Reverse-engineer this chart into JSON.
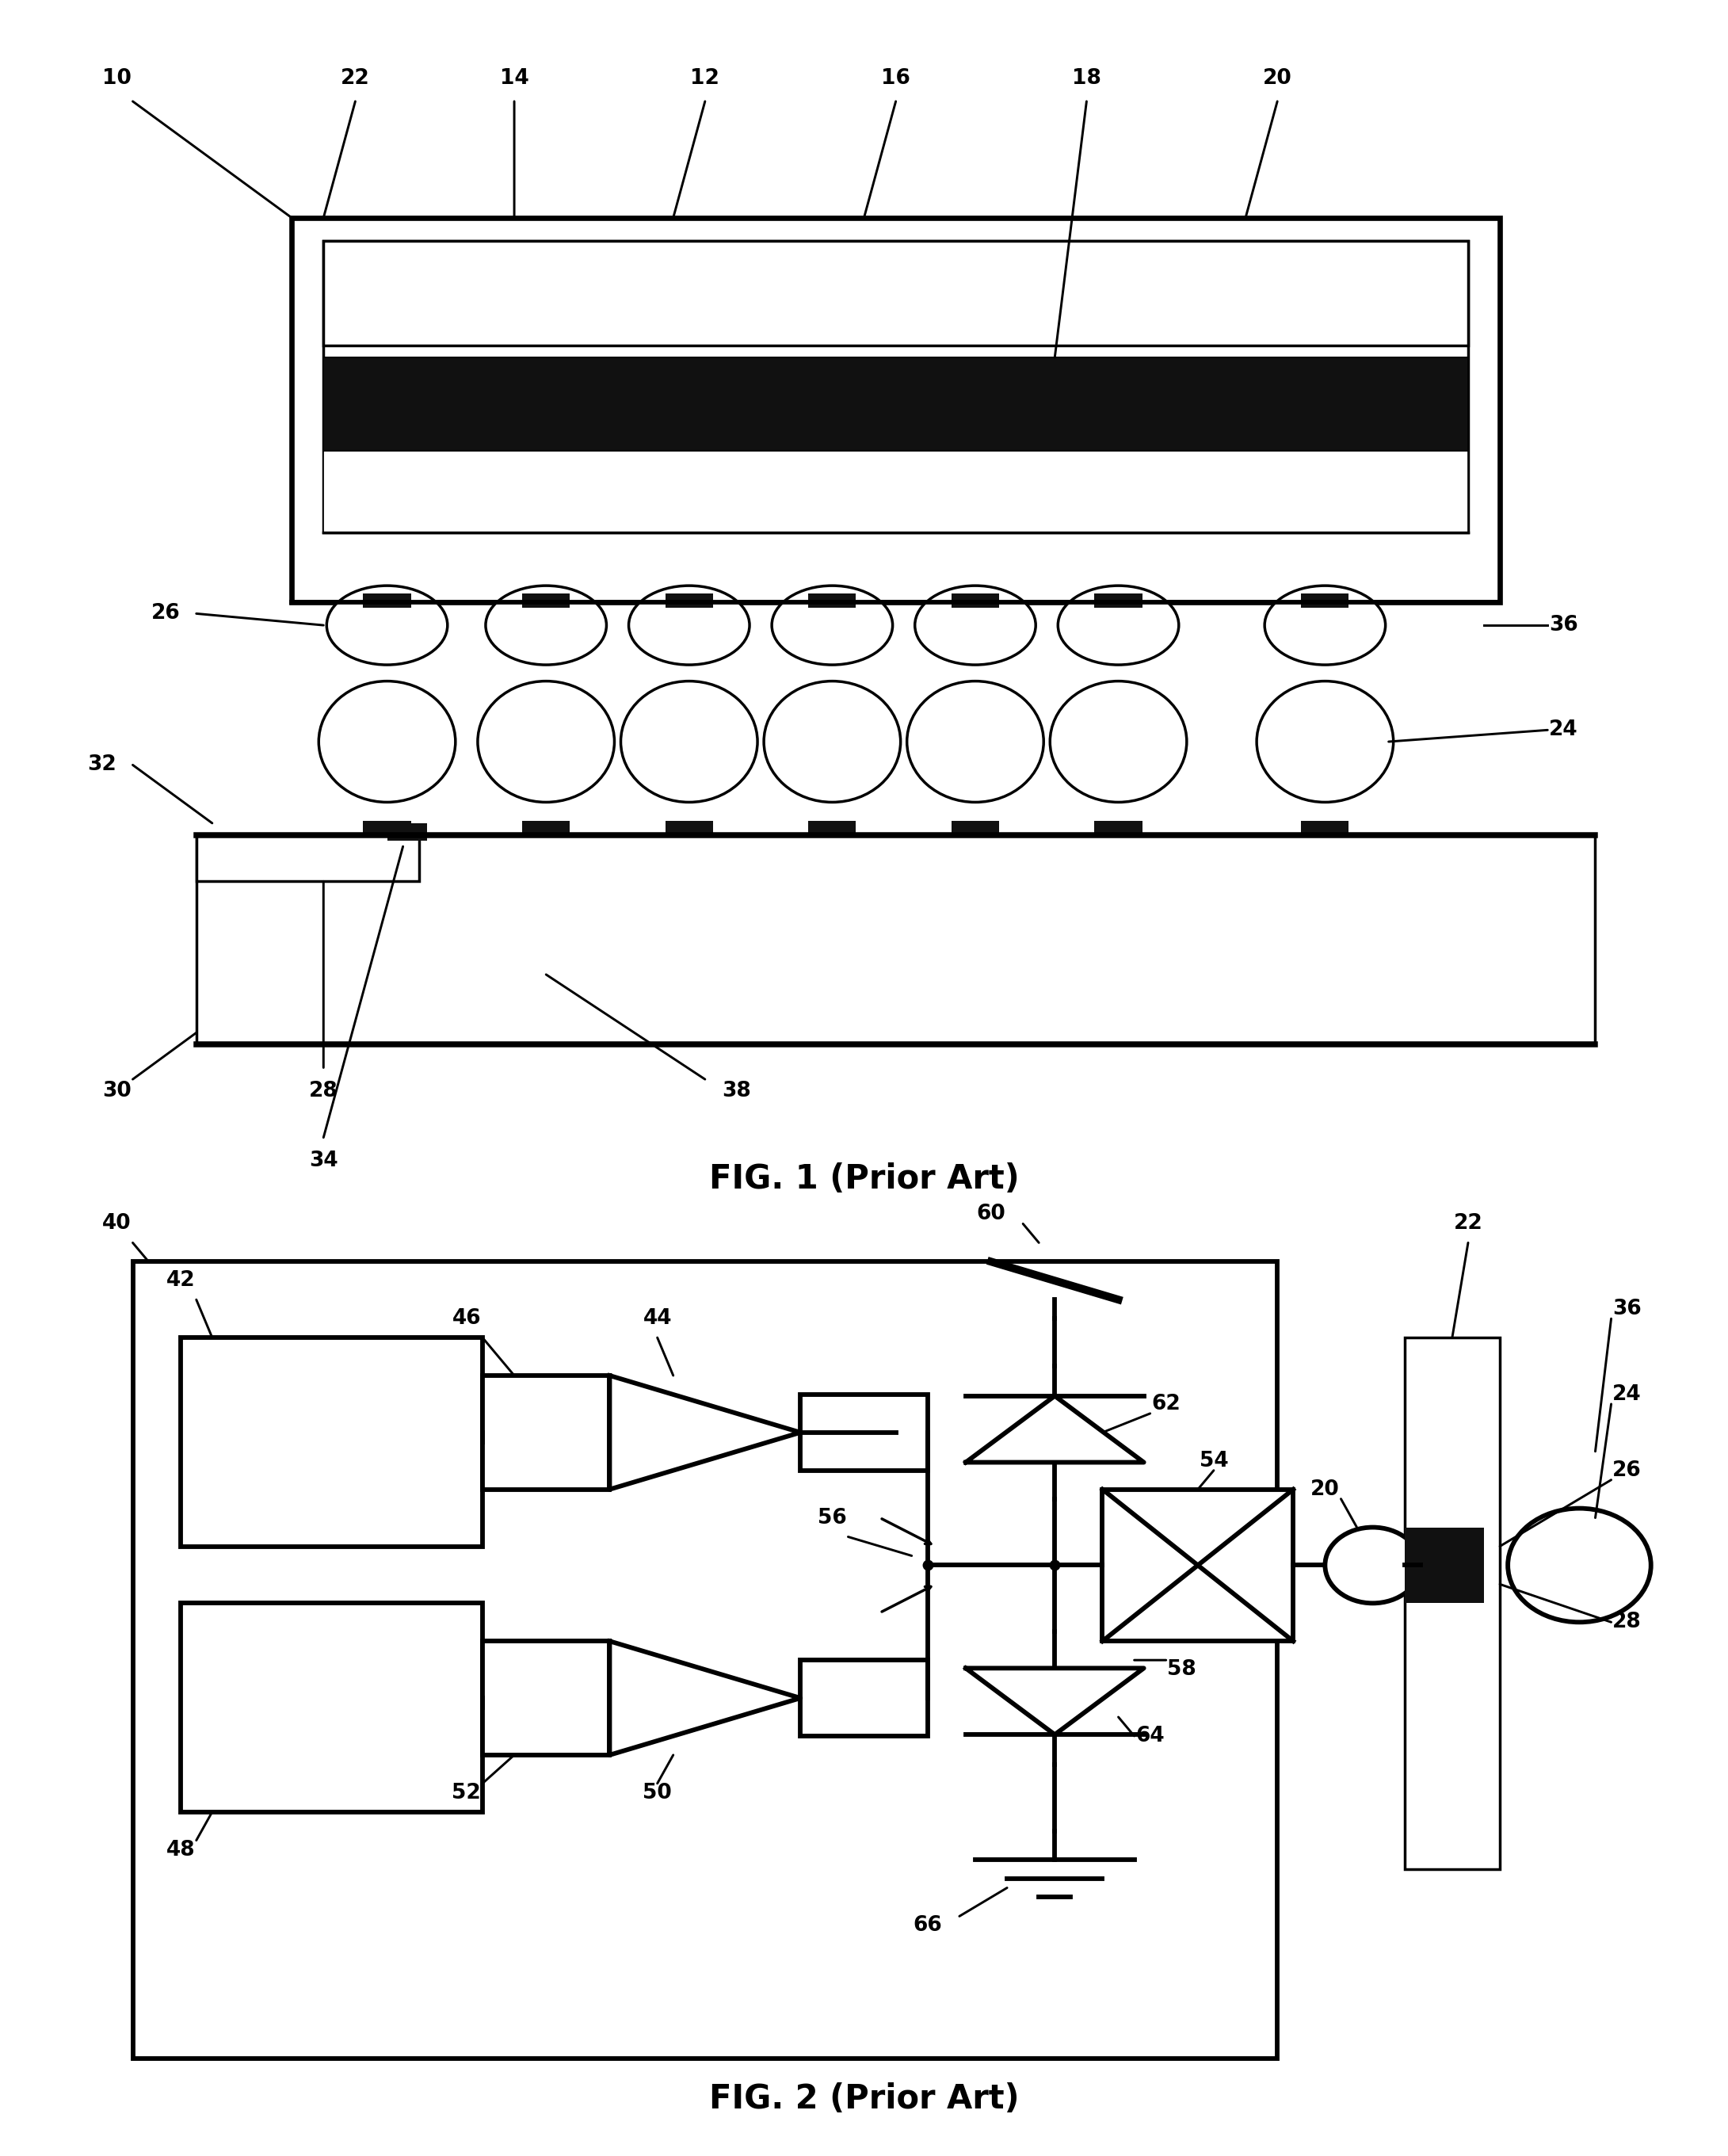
{
  "fig_width": 21.81,
  "fig_height": 27.21,
  "bg_color": "#ffffff",
  "line_color": "#000000",
  "fig1_title": "FIG. 1 (Prior Art)",
  "fig2_title": "FIG. 2 (Prior Art)",
  "title_fontsize": 30,
  "label_fontsize": 19,
  "lw": 2.5,
  "lw_thick": 6.0
}
